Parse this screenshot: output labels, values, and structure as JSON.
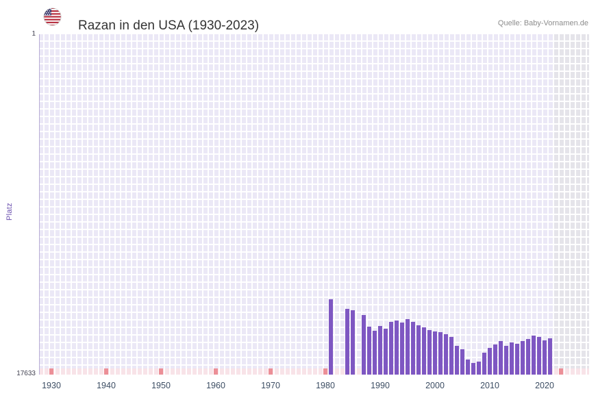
{
  "header": {
    "title": "Razan in den USA (1930-2023)",
    "source": "Quelle: Baby-Vornamen.de"
  },
  "chart_data": {
    "type": "bar",
    "title": "Razan in den USA (1930-2023)",
    "xlabel": "",
    "ylabel": "Platz",
    "y_axis": {
      "top_label": "1",
      "bottom_label": "17633",
      "min": 1,
      "max": 17633,
      "inverted": true
    },
    "x_axis": {
      "start_year": 1930,
      "end_year": 2023,
      "tick_years": [
        1930,
        1940,
        1950,
        1960,
        1970,
        1980,
        1990,
        2000,
        2010,
        2020
      ]
    },
    "series": [
      {
        "year": 1981,
        "rank": 13740
      },
      {
        "year": 1984,
        "rank": 14230
      },
      {
        "year": 1985,
        "rank": 14310
      },
      {
        "year": 1987,
        "rank": 14550
      },
      {
        "year": 1988,
        "rank": 15150
      },
      {
        "year": 1989,
        "rank": 15350
      },
      {
        "year": 1990,
        "rank": 15100
      },
      {
        "year": 1991,
        "rank": 15250
      },
      {
        "year": 1992,
        "rank": 14900
      },
      {
        "year": 1993,
        "rank": 14830
      },
      {
        "year": 1994,
        "rank": 14940
      },
      {
        "year": 1995,
        "rank": 14760
      },
      {
        "year": 1996,
        "rank": 14900
      },
      {
        "year": 1997,
        "rank": 15080
      },
      {
        "year": 1998,
        "rank": 15180
      },
      {
        "year": 1999,
        "rank": 15330
      },
      {
        "year": 2000,
        "rank": 15400
      },
      {
        "year": 2001,
        "rank": 15430
      },
      {
        "year": 2002,
        "rank": 15540
      },
      {
        "year": 2003,
        "rank": 15680
      },
      {
        "year": 2004,
        "rank": 16140
      },
      {
        "year": 2005,
        "rank": 16320
      },
      {
        "year": 2006,
        "rank": 16850
      },
      {
        "year": 2007,
        "rank": 17030
      },
      {
        "year": 2008,
        "rank": 16960
      },
      {
        "year": 2009,
        "rank": 16500
      },
      {
        "year": 2010,
        "rank": 16250
      },
      {
        "year": 2011,
        "rank": 16070
      },
      {
        "year": 2012,
        "rank": 15890
      },
      {
        "year": 2013,
        "rank": 16140
      },
      {
        "year": 2014,
        "rank": 15960
      },
      {
        "year": 2015,
        "rank": 16030
      },
      {
        "year": 2016,
        "rank": 15890
      },
      {
        "year": 2017,
        "rank": 15790
      },
      {
        "year": 2018,
        "rank": 15610
      },
      {
        "year": 2019,
        "rank": 15680
      },
      {
        "year": 2020,
        "rank": 15860
      },
      {
        "year": 2021,
        "rank": 15750
      }
    ],
    "no_data_band_years": [
      2022,
      2023
    ],
    "bottom_marker_years": [
      1930,
      1940,
      1950,
      1960,
      1970,
      1980,
      1990,
      2000,
      2010,
      2020,
      2023
    ],
    "legend": "none",
    "grid": "on",
    "colors": {
      "bar": "#7e57c2",
      "plot_background": "#ebe8f6",
      "no_data_band": "#e5e4ea",
      "bottom_strip": "#f8e3e8",
      "decade_mark": "#ec8f97",
      "axis_text": "#3c4d63",
      "ylabel_text": "#6a4fae"
    }
  }
}
